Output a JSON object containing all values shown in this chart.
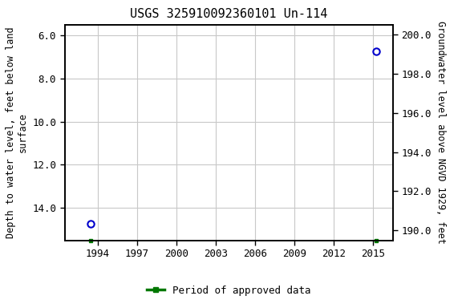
{
  "title": "USGS 325910092360101 Un-114",
  "point1_year": 1993.5,
  "point1_depth": 14.72,
  "point2_year": 2015.25,
  "point2_depth": 6.75,
  "green_sq1_year": 1993.5,
  "green_sq2_year": 2015.25,
  "xlim": [
    1991.5,
    2016.5
  ],
  "xticks": [
    1994,
    1997,
    2000,
    2003,
    2006,
    2009,
    2012,
    2015
  ],
  "ylim_left_bottom": 15.5,
  "ylim_left_top": 5.5,
  "yticks_left": [
    6.0,
    8.0,
    10.0,
    12.0,
    14.0
  ],
  "ylim_right_bottom": 189.5,
  "ylim_right_top": 200.5,
  "yticks_right": [
    190.0,
    192.0,
    194.0,
    196.0,
    198.0,
    200.0
  ],
  "ylabel_left": "Depth to water level, feet below land\nsurface",
  "ylabel_right": "Groundwater level above NGVD 1929, feet",
  "point_color": "#0000cc",
  "green_color": "#007700",
  "bg_color": "#ffffff",
  "grid_color": "#c8c8c8",
  "title_fontsize": 11,
  "axis_label_fontsize": 8.5,
  "tick_fontsize": 9,
  "legend_label": "Period of approved data",
  "legend_fontsize": 9
}
